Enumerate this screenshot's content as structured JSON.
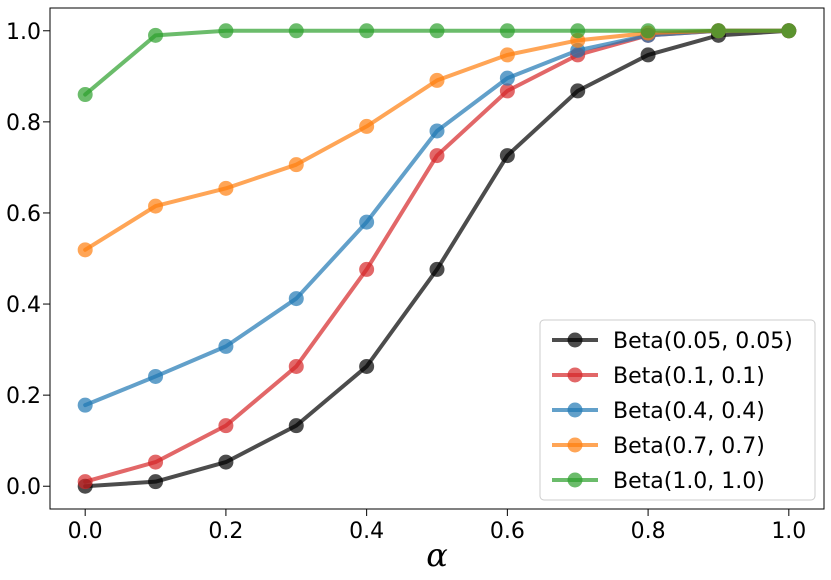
{
  "chart_data": {
    "type": "line",
    "title": "",
    "xlabel": "α",
    "ylabel": "",
    "xlim": [
      -0.05,
      1.05
    ],
    "ylim": [
      -0.05,
      1.05
    ],
    "xticks": [
      0.0,
      0.2,
      0.4,
      0.6,
      0.8,
      1.0
    ],
    "xtick_labels": [
      "0.0",
      "0.2",
      "0.4",
      "0.6",
      "0.8",
      "1.0"
    ],
    "yticks": [
      0.0,
      0.2,
      0.4,
      0.6,
      0.8,
      1.0
    ],
    "ytick_labels": [
      "0.0",
      "0.2",
      "0.4",
      "0.6",
      "0.8",
      "1.0"
    ],
    "grid": false,
    "legend_position": "lower-right",
    "x": [
      0.0,
      0.1,
      0.2,
      0.3,
      0.4,
      0.5,
      0.6,
      0.7,
      0.8,
      0.9,
      1.0
    ],
    "series": [
      {
        "name": "Beta(0.05, 0.05)",
        "color": "#000000",
        "values": [
          0.0,
          0.01,
          0.053,
          0.133,
          0.263,
          0.476,
          0.726,
          0.868,
          0.947,
          0.99,
          1.0
        ]
      },
      {
        "name": "Beta(0.1, 0.1)",
        "color": "#d62728",
        "values": [
          0.01,
          0.053,
          0.133,
          0.263,
          0.476,
          0.726,
          0.868,
          0.947,
          0.99,
          1.0,
          1.0
        ]
      },
      {
        "name": "Beta(0.4, 0.4)",
        "color": "#1f77b4",
        "values": [
          0.178,
          0.241,
          0.307,
          0.412,
          0.58,
          0.78,
          0.896,
          0.957,
          0.99,
          1.0,
          1.0
        ]
      },
      {
        "name": "Beta(0.7, 0.7)",
        "color": "#ff7f0e",
        "values": [
          0.519,
          0.615,
          0.654,
          0.706,
          0.79,
          0.891,
          0.947,
          0.979,
          0.995,
          1.0,
          1.0
        ]
      },
      {
        "name": "Beta(1.0, 1.0)",
        "color": "#2ca02c",
        "values": [
          0.86,
          0.99,
          1.0,
          1.0,
          1.0,
          1.0,
          1.0,
          1.0,
          1.0,
          1.0,
          1.0
        ]
      }
    ]
  }
}
